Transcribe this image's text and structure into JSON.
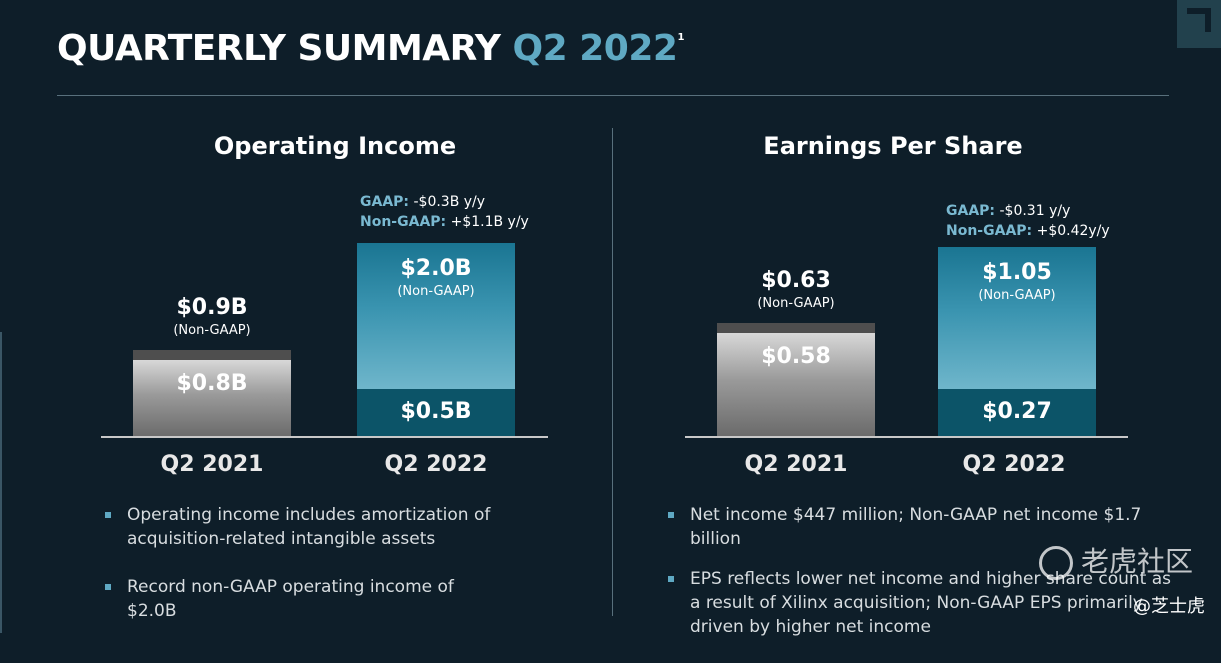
{
  "header": {
    "title_main": "QUARTERLY SUMMARY",
    "title_accent": "Q2 2022",
    "footnote": "1"
  },
  "left_panel": {
    "title": "Operating Income",
    "deltas": {
      "gaap_key": "GAAP:",
      "gaap_val": " -$0.3B y/y",
      "nongaap_key": "Non-GAAP:",
      "nongaap_val": " +$1.1B y/y"
    },
    "bars": [
      {
        "category": "Q2 2021",
        "gaap_label": "$0.8B",
        "nongaap_label": "$0.9B",
        "nongaap_note": "(Non-GAAP)"
      },
      {
        "category": "Q2 2022",
        "gaap_label": "$0.5B",
        "nongaap_label": "$2.0B",
        "nongaap_note": "(Non-GAAP)"
      }
    ],
    "bullets": [
      "Operating income includes amortization of acquisition-related intangible assets",
      "Record non-GAAP operating income of $2.0B"
    ]
  },
  "right_panel": {
    "title": "Earnings Per Share",
    "deltas": {
      "gaap_key": "GAAP:",
      "gaap_val": " -$0.31 y/y",
      "nongaap_key": "Non-GAAP:",
      "nongaap_val": " +$0.42y/y"
    },
    "bars": [
      {
        "category": "Q2 2021",
        "gaap_label": "$0.58",
        "nongaap_label": "$0.63",
        "nongaap_note": "(Non-GAAP)"
      },
      {
        "category": "Q2 2022",
        "gaap_label": "$0.27",
        "nongaap_label": "$1.05",
        "nongaap_note": "(Non-GAAP)"
      }
    ],
    "bullets": [
      "Net income $447 million; Non-GAAP net income $1.7 billion",
      "EPS reflects lower net income and higher share count as a result of Xilinx acquisition; Non-GAAP EPS primarily driven by higher net income"
    ]
  },
  "watermark": {
    "text": "老虎社区",
    "handle": "@芝士虎"
  },
  "colors": {
    "background": "#0e1e29",
    "accent": "#5fa9c3",
    "teal_bar": "#3a94b0",
    "teal_dark": "#0c5468",
    "gray_bar": "#9a9a9a"
  },
  "chart_data": [
    {
      "type": "bar",
      "title": "Operating Income",
      "categories": [
        "Q2 2021",
        "Q2 2022"
      ],
      "series": [
        {
          "name": "GAAP",
          "values": [
            0.8,
            0.5
          ]
        },
        {
          "name": "Non-GAAP",
          "values": [
            0.9,
            2.0
          ]
        }
      ],
      "unit": "$B"
    },
    {
      "type": "bar",
      "title": "Earnings Per Share",
      "categories": [
        "Q2 2021",
        "Q2 2022"
      ],
      "series": [
        {
          "name": "GAAP",
          "values": [
            0.58,
            0.27
          ]
        },
        {
          "name": "Non-GAAP",
          "values": [
            0.63,
            1.05
          ]
        }
      ],
      "unit": "$"
    }
  ]
}
